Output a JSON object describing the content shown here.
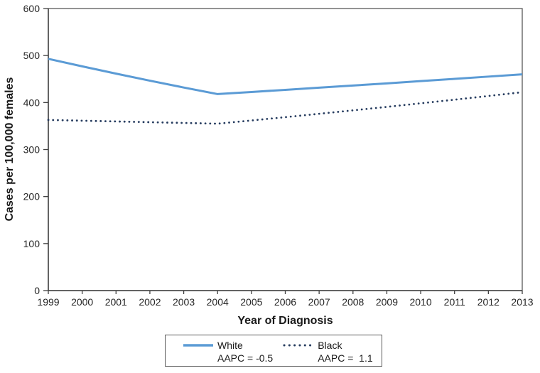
{
  "chart_data": {
    "type": "line",
    "title": "",
    "xlabel": "Year of Diagnosis",
    "ylabel": "Cases per 100,000 females",
    "x": [
      1999,
      2000,
      2001,
      2002,
      2003,
      2004,
      2005,
      2006,
      2007,
      2008,
      2009,
      2010,
      2011,
      2012,
      2013
    ],
    "ylim": [
      0,
      600
    ],
    "yticks": [
      0,
      100,
      200,
      300,
      400,
      500,
      600
    ],
    "grid": false,
    "plot_border": true,
    "legend_position": "bottom-center",
    "series": [
      {
        "name": "White",
        "aapc_label": "AAPC = -0.5",
        "color": "#5B9BD5",
        "style": "solid",
        "joinpoint_year": 2004,
        "values": [
          493.0,
          477.0,
          461.5,
          446.5,
          432.0,
          418.0,
          422.5,
          427.0,
          431.6,
          436.2,
          440.8,
          445.6,
          450.3,
          455.2,
          460.0
        ]
      },
      {
        "name": "Black",
        "aapc_label": "AAPC =  1.1",
        "color": "#263C5F",
        "style": "dotted",
        "joinpoint_year": 2004,
        "values": [
          363.0,
          361.4,
          359.8,
          358.2,
          356.6,
          355.0,
          361.9,
          368.9,
          376.1,
          383.4,
          390.8,
          398.4,
          406.1,
          414.0,
          422.0
        ]
      }
    ]
  },
  "colors": {
    "axis": "#404040",
    "plot_border": "#595959",
    "tick_text": "#262626",
    "legend_border": "#595959",
    "background": "#FFFFFF"
  }
}
